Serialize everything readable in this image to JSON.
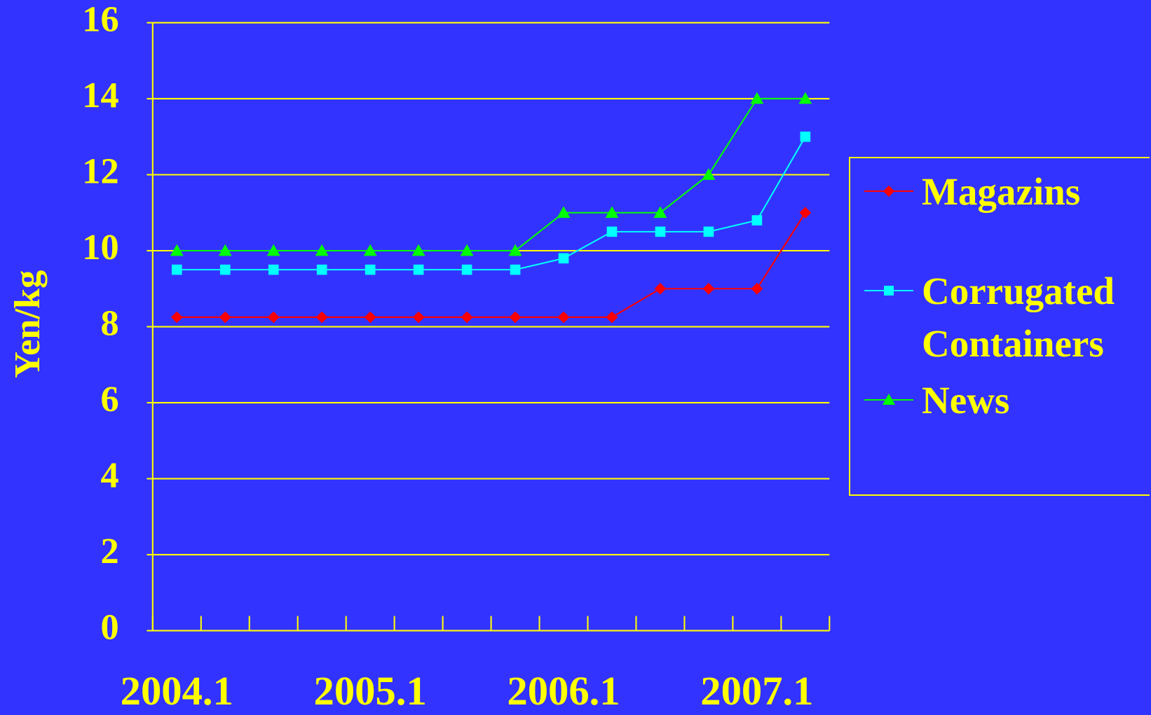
{
  "chart_data": {
    "type": "line",
    "y_label": "Yen/kg",
    "categories": [
      "2004.1",
      null,
      null,
      null,
      "2005.1",
      null,
      null,
      null,
      "2006.1",
      null,
      null,
      null,
      "2007.1",
      null
    ],
    "series": [
      {
        "name": "Magazins",
        "color": "#ff0000",
        "marker": "diamond",
        "values": [
          8.25,
          8.25,
          8.25,
          8.25,
          8.25,
          8.25,
          8.25,
          8.25,
          8.25,
          8.25,
          9,
          9,
          9,
          11
        ]
      },
      {
        "name": "Corrugated Containers",
        "color": "#00ffff",
        "marker": "square",
        "values": [
          9.5,
          9.5,
          9.5,
          9.5,
          9.5,
          9.5,
          9.5,
          9.5,
          9.8,
          10.5,
          10.5,
          10.5,
          10.8,
          13
        ]
      },
      {
        "name": "News",
        "color": "#00ff00",
        "marker": "triangle",
        "values": [
          10,
          10,
          10,
          10,
          10,
          10,
          10,
          10,
          11,
          11,
          11,
          12,
          14,
          14
        ]
      }
    ],
    "ylim": [
      0,
      16
    ],
    "yticks": [
      0,
      2,
      4,
      6,
      8,
      10,
      12,
      14,
      16
    ],
    "grid": true,
    "legend": "right"
  }
}
